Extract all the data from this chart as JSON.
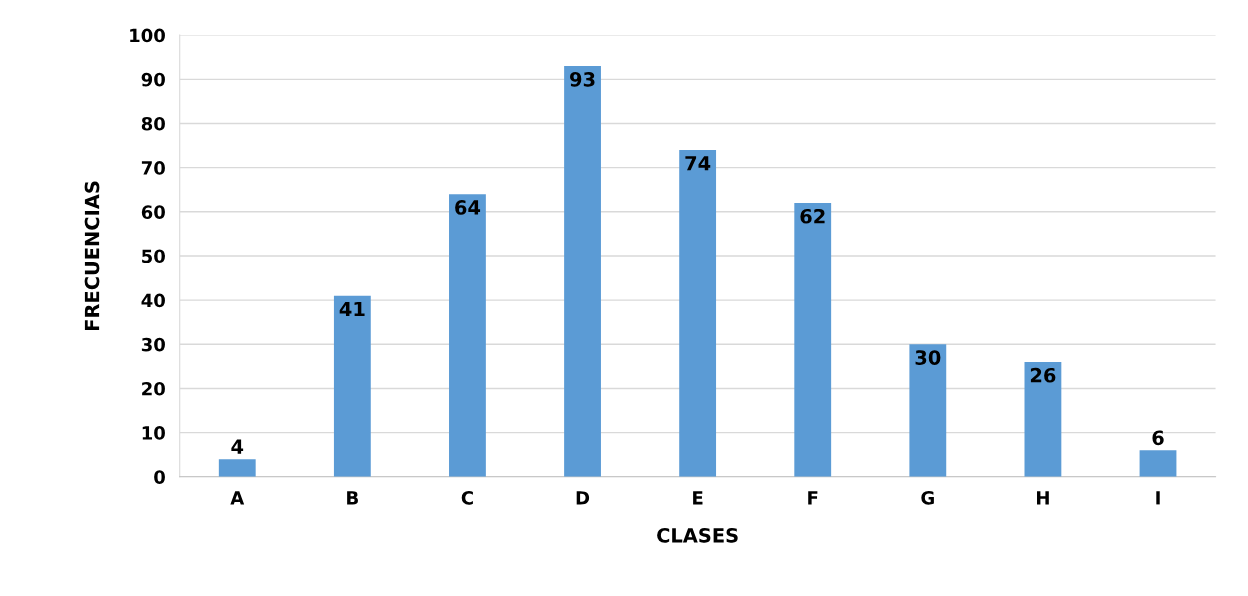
{
  "chart_data": {
    "type": "bar",
    "xlabel": "CLASES",
    "ylabel": "FRECUENCIAS",
    "categories": [
      "A",
      "B",
      "C",
      "D",
      "E",
      "F",
      "G",
      "H",
      "I"
    ],
    "values": [
      4,
      41,
      64,
      93,
      74,
      62,
      30,
      26,
      6
    ],
    "color": "#5b9bd5",
    "ylim": [
      0,
      100
    ],
    "yticks": [
      0,
      10,
      20,
      30,
      40,
      50,
      60,
      70,
      80,
      90,
      100
    ],
    "grid": "y",
    "data_labels": true
  }
}
